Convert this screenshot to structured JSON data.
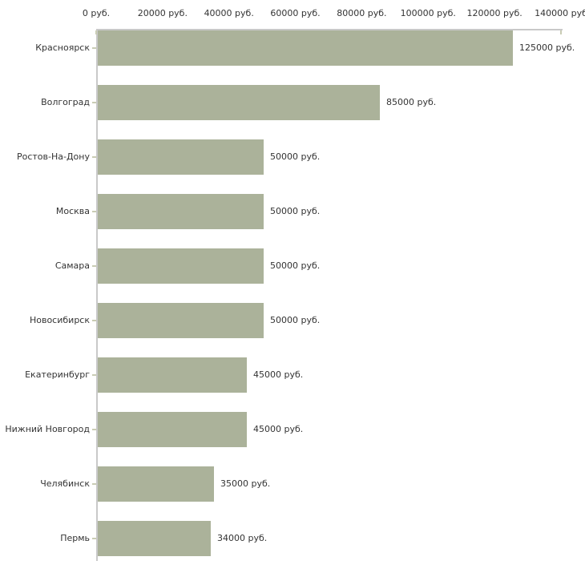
{
  "chart_data": {
    "type": "bar",
    "orientation": "horizontal",
    "title": "",
    "xlabel": "",
    "ylabel": "",
    "xlim": [
      0,
      140000
    ],
    "grid": false,
    "legend": false,
    "unit": "руб.",
    "categories": [
      "Красноярск",
      "Волгоград",
      "Ростов-На-Дону",
      "Москва",
      "Самара",
      "Новосибирск",
      "Екатеринбург",
      "Нижний Новгород",
      "Челябинск",
      "Пермь"
    ],
    "values": [
      125000,
      85000,
      50000,
      50000,
      50000,
      50000,
      45000,
      45000,
      35000,
      34000
    ],
    "value_labels": [
      "125000 руб.",
      "85000 руб.",
      "50000 руб.",
      "50000 руб.",
      "50000 руб.",
      "50000 руб.",
      "45000 руб.",
      "45000 руб.",
      "35000 руб.",
      "34000 руб."
    ],
    "x_axis": {
      "tick_values": [
        0,
        20000,
        40000,
        60000,
        80000,
        100000,
        120000,
        140000
      ],
      "tick_labels": [
        "0 руб.",
        "20000 руб.",
        "40000 руб.",
        "60000 руб.",
        "80000 руб.",
        "100000 руб.",
        "120000 руб.",
        "140000 руб"
      ]
    },
    "colors": {
      "bar_fill": "#abb29a",
      "axis_line": "#c9c9c9",
      "tick_mark": "#c9ccb4",
      "text": "#333333",
      "background": "#ffffff"
    }
  }
}
